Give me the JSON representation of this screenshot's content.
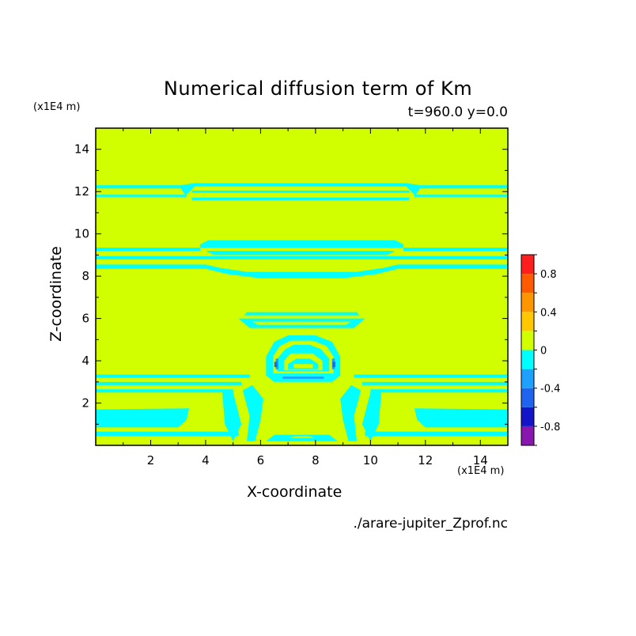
{
  "chart_data": {
    "type": "heatmap",
    "title": "Numerical diffusion term of Km",
    "subtitle": "t=960.0 y=0.0",
    "xlabel": "X-coordinate",
    "ylabel": "Z-coordinate",
    "x_unit": "(x1E4 m)",
    "y_unit": "(x1E4 m)",
    "xlim": [
      0,
      15
    ],
    "ylim": [
      0,
      15
    ],
    "x_ticks": [
      "2",
      "4",
      "6",
      "8",
      "10",
      "12",
      "14"
    ],
    "y_ticks": [
      "2",
      "4",
      "6",
      "8",
      "10",
      "12",
      "14"
    ],
    "colorbar": {
      "levels": [
        -1.0,
        -0.8,
        -0.6,
        -0.4,
        -0.2,
        0,
        0.2,
        0.4,
        0.6,
        0.8,
        1.0
      ],
      "tick_labels": [
        "0.8",
        "0.4",
        "0",
        "-0.4",
        "-0.8"
      ],
      "colors": [
        "#8a16b0",
        "#1414c8",
        "#1e64f0",
        "#1ea0ff",
        "#00ffff",
        "#d2ff00",
        "#ffc800",
        "#ff9600",
        "#ff5a00",
        "#ff1e1e",
        "#ffaaaa"
      ]
    },
    "background_value_range": [
      0,
      0.2
    ],
    "features": {
      "bands_cyan": [
        {
          "z_range": [
            11.5,
            12.5
          ],
          "value_range": [
            -0.2,
            0
          ]
        },
        {
          "z_range": [
            8.2,
            9.6
          ],
          "value_range": [
            -0.2,
            0
          ]
        },
        {
          "z_range": [
            2.6,
            3.3
          ],
          "value_range": [
            -0.2,
            0
          ]
        },
        {
          "z_range": [
            0.2,
            1.4
          ],
          "value_range": [
            -0.2,
            0
          ]
        }
      ],
      "central_arch": {
        "x_range": [
          6.3,
          8.9
        ],
        "z_range": [
          2.6,
          5.0
        ]
      },
      "upper_cap": {
        "x_range": [
          5.2,
          9.8
        ],
        "z_range": [
          5.4,
          6.4
        ]
      },
      "min_spots": [
        {
          "x": 6.5,
          "z": 3.8,
          "value_range": [
            -0.8,
            -0.6
          ]
        },
        {
          "x": 8.7,
          "z": 3.8,
          "value_range": [
            -0.8,
            -0.6
          ]
        }
      ]
    }
  },
  "source_file": "./arare-jupiter_Zprof.nc"
}
